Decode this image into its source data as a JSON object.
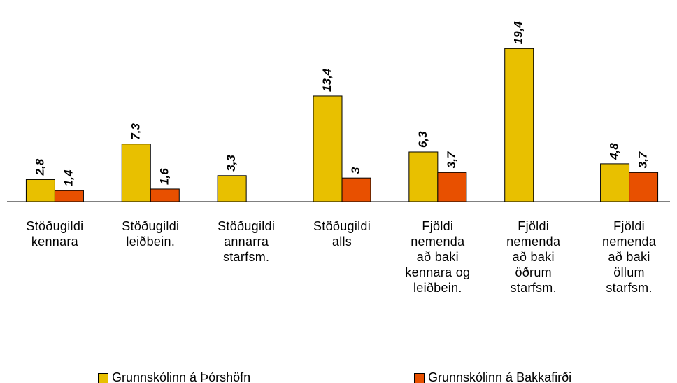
{
  "chart_data": {
    "type": "bar",
    "categories": [
      "Stöðugildi\nkennara",
      "Stöðugildi\nleiðbein.",
      "Stöðugildi\nannarra\nstarfsm.",
      "Stöðugildi\nalls",
      "Fjöldi\nnemenda\nað baki\nkennara og\nleiðbein.",
      "Fjöldi\nnemenda\nað baki\nöðrum\nstarfsm.",
      "Fjöldi\nnemenda\nað baki\nöllum\nstarfsm."
    ],
    "series": [
      {
        "name": "Grunnskólinn á Þórshöfn",
        "color": "#e8c000",
        "values": [
          2.8,
          7.3,
          3.3,
          13.4,
          6.3,
          19.4,
          4.8
        ],
        "value_labels": [
          "2,8",
          "7,3",
          "3,3",
          "13,4",
          "6,3",
          "19,4",
          "4,8"
        ]
      },
      {
        "name": "Grunnskólinn á Bakkafirði",
        "color": "#e85000",
        "values": [
          1.4,
          1.6,
          null,
          3,
          3.7,
          null,
          3.7
        ],
        "value_labels": [
          "1,4",
          "1,6",
          null,
          "3",
          "3,7",
          null,
          "3,7"
        ]
      }
    ],
    "ylim": [
      0,
      22
    ]
  }
}
